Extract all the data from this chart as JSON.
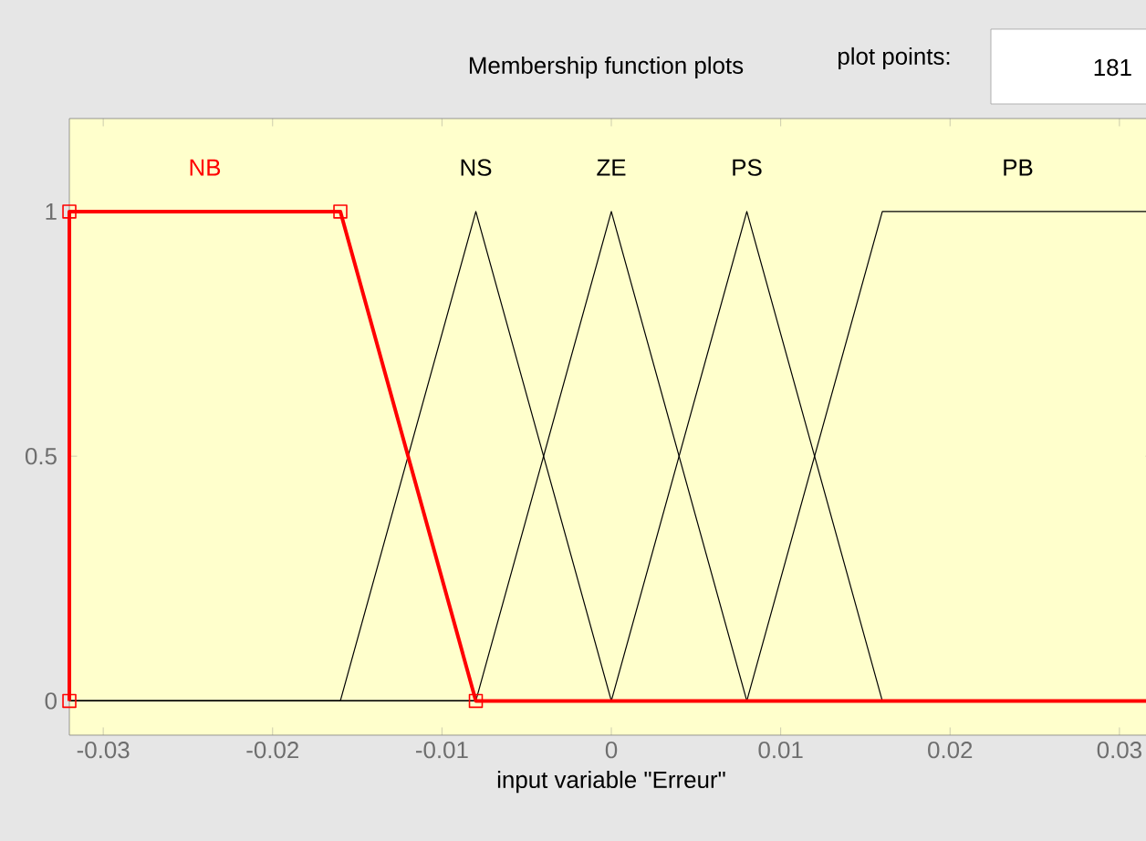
{
  "chart_data": {
    "type": "line",
    "title": "Membership function plots",
    "xlabel": "input variable \"Erreur\"",
    "annotations": [
      "plot points:",
      "181"
    ],
    "xlim": [
      -0.032,
      0.032
    ],
    "ylim": [
      -0.07,
      1.19
    ],
    "xticks": [
      -0.03,
      -0.02,
      -0.01,
      0,
      0.01,
      0.02,
      0.03
    ],
    "yticks": [
      0,
      0.5,
      1
    ],
    "series": [
      {
        "name": "NB",
        "color": "#ff0000",
        "marker": "square",
        "x": [
          -0.032,
          -0.032,
          -0.016,
          -0.008,
          0.032
        ],
        "values": [
          0,
          1,
          1,
          0,
          0
        ]
      },
      {
        "name": "NS",
        "color": "#000000",
        "x": [
          -0.032,
          -0.016,
          -0.008,
          0,
          0.032
        ],
        "values": [
          0,
          0,
          1,
          0,
          0
        ]
      },
      {
        "name": "ZE",
        "color": "#000000",
        "x": [
          -0.032,
          -0.008,
          0,
          0.008,
          0.032
        ],
        "values": [
          0,
          0,
          1,
          0,
          0
        ]
      },
      {
        "name": "PS",
        "color": "#000000",
        "x": [
          -0.032,
          0,
          0.008,
          0.016,
          0.032
        ],
        "values": [
          0,
          0,
          1,
          0,
          0
        ]
      },
      {
        "name": "PB",
        "color": "#000000",
        "x": [
          -0.032,
          0.008,
          0.016,
          0.032
        ],
        "values": [
          0,
          0,
          1,
          1
        ]
      }
    ],
    "legend": false,
    "grid": false
  }
}
